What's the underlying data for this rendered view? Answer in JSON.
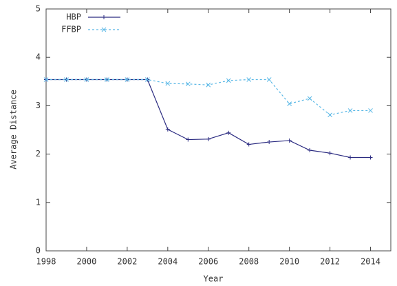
{
  "chart_data": {
    "type": "line",
    "x_label": "Year",
    "y_label": "Average Distance",
    "x": [
      1998,
      1999,
      2000,
      2001,
      2002,
      2003,
      2004,
      2005,
      2006,
      2007,
      2008,
      2009,
      2010,
      2011,
      2012,
      2013,
      2014
    ],
    "series": [
      {
        "name": "HBP",
        "color": "#2a2a80",
        "marker": "plus",
        "dashed": false,
        "values": [
          3.54,
          3.54,
          3.54,
          3.54,
          3.54,
          3.54,
          2.51,
          2.3,
          2.31,
          2.44,
          2.2,
          2.25,
          2.28,
          2.08,
          2.02,
          1.93,
          1.93
        ]
      },
      {
        "name": "FFBP",
        "color": "#5ab8e6",
        "marker": "cross",
        "dashed": true,
        "values": [
          3.54,
          3.54,
          3.54,
          3.54,
          3.54,
          3.54,
          3.46,
          3.45,
          3.43,
          3.52,
          3.54,
          3.54,
          3.04,
          3.15,
          2.81,
          2.9,
          2.9
        ]
      }
    ],
    "xlim": [
      1998,
      2015
    ],
    "ylim": [
      0,
      5
    ],
    "xticks": [
      1998,
      2000,
      2002,
      2004,
      2006,
      2008,
      2010,
      2012,
      2014
    ],
    "yticks": [
      0,
      1,
      2,
      3,
      4,
      5
    ],
    "grid": false,
    "legend": "top-left"
  }
}
